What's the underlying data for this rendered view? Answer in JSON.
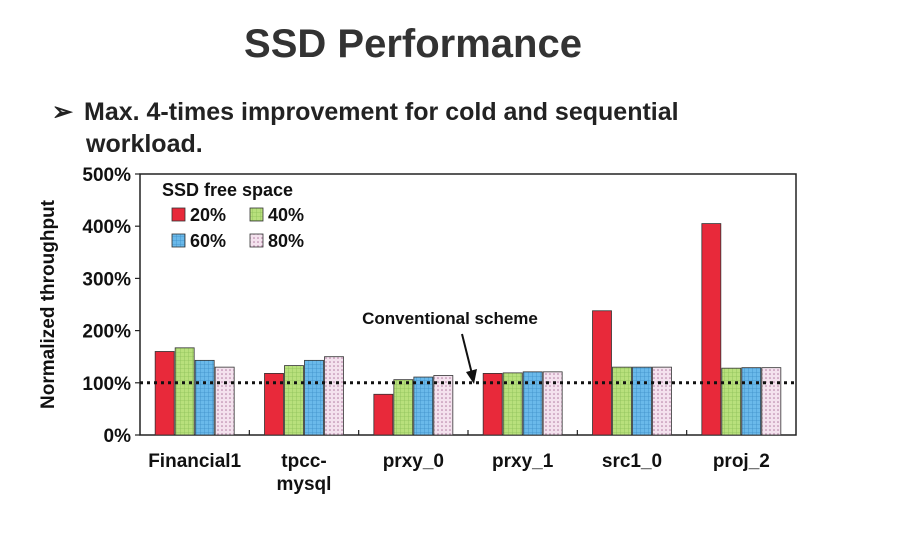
{
  "slide": {
    "title": "SSD Performance",
    "bullet_marker": "➢",
    "bullet_text_line1": "Max. 4-times improvement for cold and sequential",
    "bullet_text_line2": "workload."
  },
  "chart_data": {
    "type": "bar",
    "ylabel": "Normalized throughput",
    "ylim": [
      0,
      500
    ],
    "yticks": [
      "0%",
      "100%",
      "200%",
      "300%",
      "400%",
      "500%"
    ],
    "categories": [
      [
        "Financial1"
      ],
      [
        "tpcc-",
        "mysql"
      ],
      [
        "prxy_0"
      ],
      [
        "prxy_1"
      ],
      [
        "src1_0"
      ],
      [
        "proj_2"
      ]
    ],
    "legend_title": "SSD free space",
    "legend_position": "top-left",
    "series": [
      {
        "name": "20%",
        "color": "#e8293a",
        "pattern": "solid",
        "values": [
          160,
          118,
          78,
          118,
          238,
          405
        ]
      },
      {
        "name": "40%",
        "color": "#b5dc7a",
        "pattern": "green-grid",
        "values": [
          167,
          133,
          106,
          119,
          130,
          128
        ]
      },
      {
        "name": "60%",
        "color": "#68b8e8",
        "pattern": "blue-grid",
        "values": [
          143,
          143,
          111,
          121,
          130,
          129
        ]
      },
      {
        "name": "80%",
        "color": "#f0d8e8",
        "pattern": "pink-dots",
        "values": [
          130,
          150,
          114,
          121,
          130,
          129
        ]
      }
    ],
    "reference_line": {
      "label": "Conventional scheme",
      "value": 100,
      "style": "dotted"
    }
  }
}
